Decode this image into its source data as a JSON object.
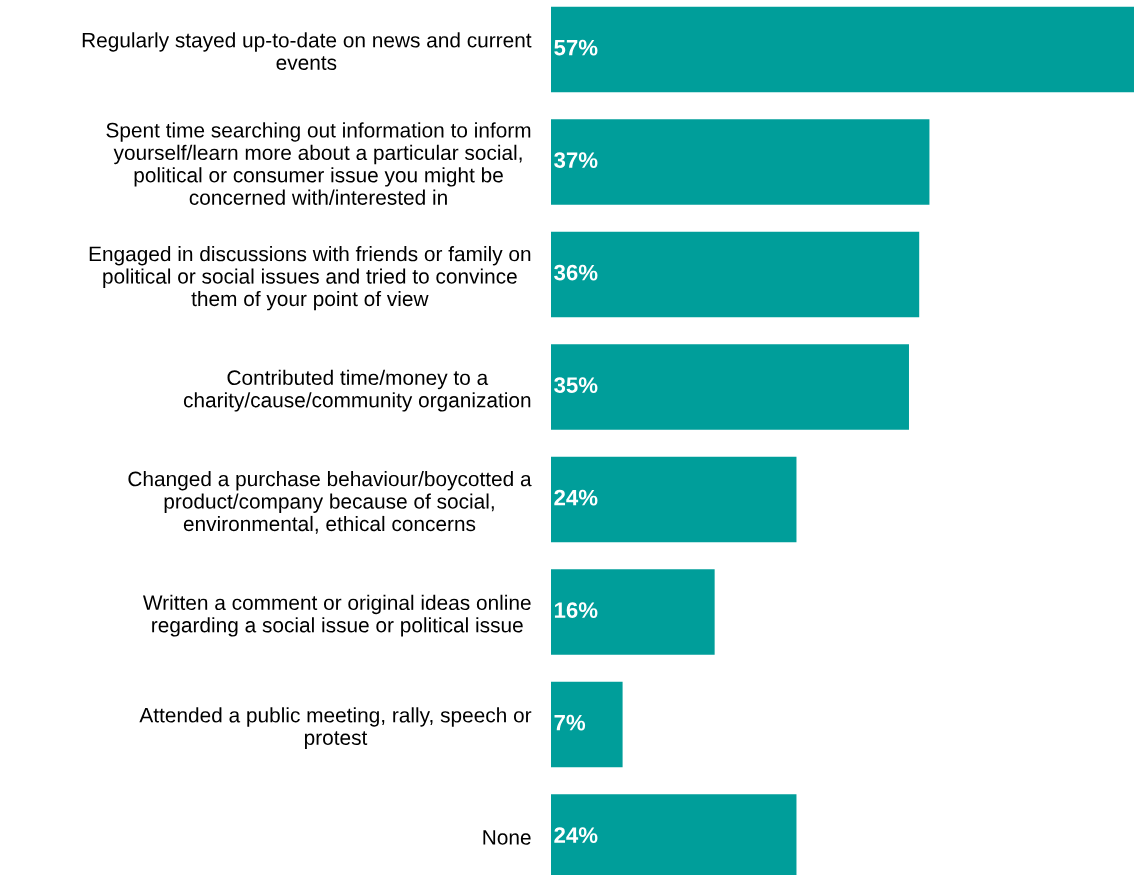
{
  "chart_data": {
    "type": "bar",
    "orientation": "horizontal",
    "categories": [
      "Regularly stayed up-to-date on news and current\nevents",
      "Spent time searching out information to inform\nyourself/learn more about a particular social,\npolitical or consumer issue you might be\nconcerned with/interested in",
      "Engaged in discussions with friends or family on\npolitical or social issues and tried to convince\nthem of your point of view",
      "Contributed time/money to a\ncharity/cause/community organization",
      "Changed a purchase behaviour/boycotted a\nproduct/company because of social,\nenvironmental, ethical concerns",
      "Written a comment or original ideas online\nregarding a social issue or political issue",
      "Attended a public meeting, rally, speech or\nprotest",
      "None"
    ],
    "values": [
      57,
      37,
      36,
      35,
      24,
      16,
      7,
      24
    ],
    "value_labels": [
      "57%",
      "37%",
      "36%",
      "35%",
      "24%",
      "16%",
      "7%",
      "24%"
    ],
    "color": "#009e9a"
  }
}
